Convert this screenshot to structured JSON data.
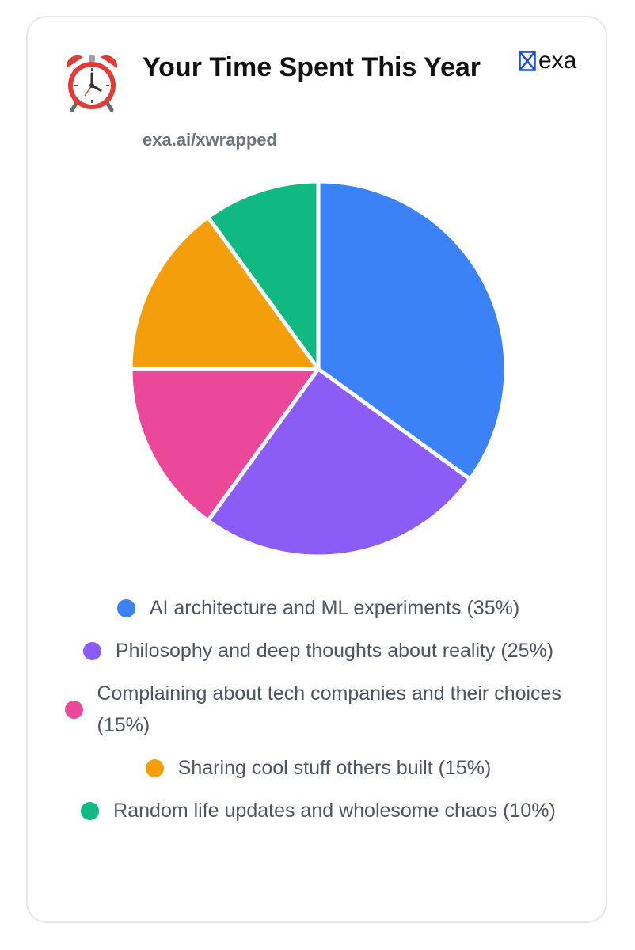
{
  "header": {
    "title": "Your Time Spent This Year",
    "url": "exa.ai/xwrapped",
    "brand": "exa",
    "title_icon": "alarm-clock-icon",
    "brand_icon": "exa-logo-icon"
  },
  "chart_data": {
    "type": "pie",
    "title": "Your Time Spent This Year",
    "legend_position": "bottom",
    "slices": [
      {
        "label": "AI architecture and ML experiments (35%)",
        "value": 35,
        "color": "#3b82f6"
      },
      {
        "label": "Philosophy and deep thoughts about reality (25%)",
        "value": 25,
        "color": "#8b5cf6"
      },
      {
        "label": "Complaining about tech companies and their choices (15%)",
        "value": 15,
        "color": "#ec4899"
      },
      {
        "label": "Sharing cool stuff others built (15%)",
        "value": 15,
        "color": "#f59e0b"
      },
      {
        "label": "Random life updates and wholesome chaos (10%)",
        "value": 10,
        "color": "#10b981"
      }
    ]
  }
}
